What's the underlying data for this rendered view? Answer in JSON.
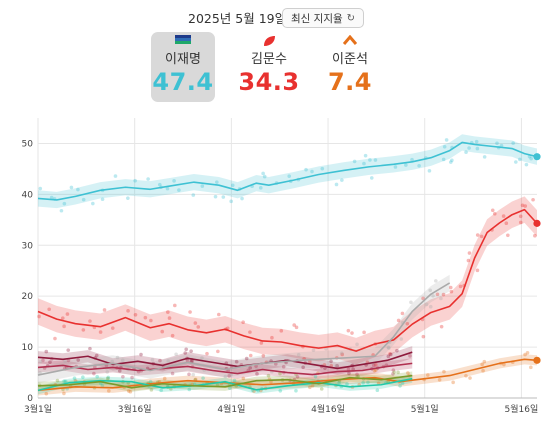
{
  "header": {
    "date": "2025년 5월 19일",
    "latest_button": "최신 지지율",
    "refresh_icon": "refresh-icon"
  },
  "candidates": [
    {
      "name": "이재명",
      "value": "47.4",
      "color": "#3ec1d3",
      "icon": "flag-icon",
      "selected": true
    },
    {
      "name": "김문수",
      "value": "34.3",
      "color": "#e8312f",
      "icon": "leaf-icon",
      "selected": false
    },
    {
      "name": "이준석",
      "value": "7.4",
      "color": "#e5711b",
      "icon": "chevron-up-icon",
      "selected": false
    }
  ],
  "chart_data": {
    "type": "line",
    "x_tick_labels": [
      "3월1일",
      "3월16일",
      "4월1일",
      "4월16일",
      "5월1일",
      "5월16일"
    ],
    "y_ticks": [
      0,
      10,
      20,
      30,
      40,
      50
    ],
    "ylim": [
      0,
      55
    ],
    "x_range_days": [
      0,
      80
    ],
    "grid": true,
    "series": [
      {
        "name": "이재명",
        "color": "#3ec1d3",
        "band": 1.6,
        "x": [
          0,
          3,
          6,
          10,
          14,
          18,
          21,
          25,
          29,
          32,
          35,
          37,
          41,
          45,
          49,
          53,
          57,
          60,
          63,
          66,
          68,
          70,
          73,
          76,
          78,
          80
        ],
        "y": [
          39.2,
          38.9,
          39.6,
          40.8,
          41.4,
          41.0,
          41.6,
          42.4,
          41.8,
          40.8,
          42.2,
          41.8,
          42.8,
          43.9,
          44.7,
          45.4,
          45.9,
          46.4,
          47.2,
          48.6,
          50.2,
          49.8,
          49.4,
          49.0,
          48.0,
          47.4
        ]
      },
      {
        "name": "김문수",
        "color": "#e8312f",
        "band": 2.6,
        "x": [
          0,
          3,
          6,
          10,
          14,
          18,
          21,
          24,
          27,
          30,
          33,
          36,
          39,
          42,
          45,
          48,
          51,
          54,
          57,
          60,
          63,
          66,
          68,
          70,
          72,
          74,
          76,
          78,
          80
        ],
        "y": [
          17,
          15.5,
          14.6,
          14.0,
          15.8,
          13.8,
          14.6,
          13.4,
          12.8,
          13.5,
          12.2,
          11.2,
          11.0,
          10.3,
          9.8,
          10.3,
          9.2,
          10.6,
          11.4,
          14.5,
          16.8,
          18.0,
          20.5,
          27.5,
          32.5,
          34.4,
          36.0,
          37.0,
          34.3
        ]
      },
      {
        "name": "이준석",
        "color": "#e5711b",
        "band": 1.0,
        "x": [
          0,
          6,
          12,
          18,
          24,
          30,
          36,
          42,
          48,
          54,
          58,
          62,
          66,
          70,
          74,
          78,
          80
        ],
        "y": [
          1.5,
          2.2,
          2.0,
          2.8,
          3.4,
          3.0,
          2.6,
          3.0,
          3.6,
          4.0,
          3.2,
          3.8,
          4.4,
          5.6,
          6.8,
          7.6,
          7.4
        ]
      },
      {
        "name": "",
        "color": "#8e1a3c",
        "band": 1.2,
        "x": [
          0,
          4,
          8,
          12,
          16,
          20,
          24,
          28,
          32,
          36,
          40,
          44,
          48,
          52,
          56,
          60
        ],
        "y": [
          8.0,
          7.6,
          8.2,
          6.6,
          7.2,
          6.4,
          7.8,
          7.0,
          6.2,
          6.8,
          7.4,
          6.6,
          5.8,
          6.6,
          7.4,
          9.0
        ]
      },
      {
        "name": "",
        "color": "#b03050",
        "band": 1.0,
        "x": [
          0,
          4,
          8,
          12,
          16,
          20,
          24,
          28,
          32,
          36,
          40,
          44,
          48,
          52,
          56,
          60
        ],
        "y": [
          6.0,
          6.4,
          5.6,
          6.0,
          5.4,
          5.8,
          6.2,
          5.4,
          4.8,
          5.6,
          5.0,
          4.6,
          5.2,
          5.4,
          6.2,
          6.8
        ]
      },
      {
        "name": "",
        "color": "#aaaaaa",
        "band": 1.6,
        "x": [
          0,
          6,
          12,
          18,
          24,
          30,
          36,
          42,
          48,
          54,
          57,
          60,
          63,
          66
        ],
        "y": [
          4.5,
          6.0,
          6.8,
          5.4,
          7.0,
          5.6,
          6.8,
          7.4,
          7.8,
          8.2,
          12.0,
          17.0,
          20.4,
          22.6
        ]
      },
      {
        "name": "",
        "color": "#22c9a8",
        "band": 0.8,
        "x": [
          0,
          5,
          10,
          15,
          20,
          25,
          30,
          35,
          40,
          45,
          50,
          55,
          60
        ],
        "y": [
          1.5,
          3.0,
          3.4,
          3.2,
          2.0,
          2.4,
          3.2,
          1.6,
          2.4,
          3.0,
          2.2,
          2.6,
          3.8
        ]
      },
      {
        "name": "",
        "color": "#7a9a2a",
        "band": 0.8,
        "x": [
          0,
          5,
          10,
          15,
          20,
          25,
          30,
          35,
          40,
          45,
          50,
          55,
          60
        ],
        "y": [
          2.4,
          2.6,
          3.2,
          2.0,
          2.8,
          2.4,
          2.2,
          3.4,
          3.6,
          2.8,
          4.0,
          3.6,
          4.4
        ]
      }
    ]
  }
}
